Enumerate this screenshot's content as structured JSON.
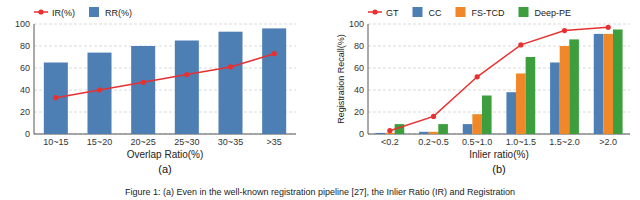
{
  "chart_data": [
    {
      "type": "bar",
      "title": "(a)",
      "xlabel": "Overlap Ratio(%)",
      "categories": [
        "10~15",
        "15~20",
        "20~25",
        "25~30",
        "30~35",
        ">35"
      ],
      "series": [
        {
          "name": "IR(%)",
          "type": "line",
          "marker": "circle",
          "color": "#e83030",
          "values": [
            33,
            40,
            47,
            54,
            61,
            73
          ]
        },
        {
          "name": "RR(%)",
          "type": "bar",
          "color": "#4d7fb5",
          "values": [
            65,
            74,
            80,
            85,
            93,
            96
          ]
        }
      ],
      "ylim": [
        0,
        100
      ],
      "yticks": [
        0,
        20,
        40,
        60,
        80,
        100
      ],
      "grid": true,
      "legend": "upper left"
    },
    {
      "type": "bar",
      "title": "(b)",
      "xlabel": "Inlier ratio(%)",
      "ylabel": "Registration Recall(%)",
      "categories": [
        "<0.2",
        "0.2~0.5",
        "0.5~1.0",
        "1.0~1.5",
        "1.5~2.0",
        ">2.0"
      ],
      "series": [
        {
          "name": "GT",
          "type": "line",
          "marker": "circle",
          "color": "#e83030",
          "values": [
            3,
            16,
            52,
            81,
            94,
            97
          ]
        },
        {
          "name": "CC",
          "type": "bar",
          "color": "#4d7fb5",
          "values": [
            1,
            2,
            9,
            38,
            65,
            91
          ]
        },
        {
          "name": "FS-TCD",
          "type": "bar",
          "color": "#f0882a",
          "values": [
            1,
            2,
            18,
            55,
            80,
            91
          ]
        },
        {
          "name": "Deep-PE",
          "type": "bar",
          "color": "#3d9e3d",
          "values": [
            9,
            9,
            35,
            70,
            86,
            95
          ]
        }
      ],
      "ylim": [
        0,
        100
      ],
      "yticks": [
        0,
        20,
        40,
        60,
        80,
        100
      ],
      "grid": true,
      "legend": "upper left"
    }
  ],
  "caption": "Figure 1: (a) Even in the well-known registration pipeline [27], the Inlier Ratio (IR) and Registration"
}
